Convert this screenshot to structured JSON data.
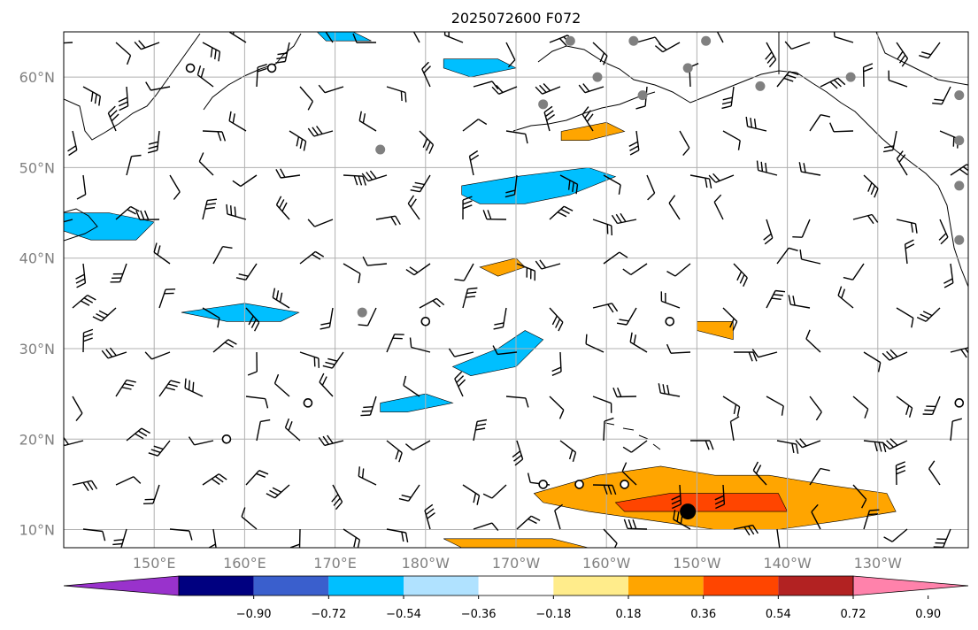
{
  "title": "2025072600 F072",
  "map": {
    "lon_range": [
      140,
      240
    ],
    "lat_range": [
      8,
      65
    ],
    "grid": true,
    "lat_ticks": [
      {
        "value": 10,
        "label": "10°N"
      },
      {
        "value": 20,
        "label": "20°N"
      },
      {
        "value": 30,
        "label": "30°N"
      },
      {
        "value": 40,
        "label": "40°N"
      },
      {
        "value": 50,
        "label": "50°N"
      },
      {
        "value": 60,
        "label": "60°N"
      }
    ],
    "lon_ticks": [
      {
        "value": 150,
        "label": "150°E"
      },
      {
        "value": 160,
        "label": "160°E"
      },
      {
        "value": 170,
        "label": "170°E"
      },
      {
        "value": 180,
        "label": "180°W"
      },
      {
        "value": 190,
        "label": "170°W"
      },
      {
        "value": 200,
        "label": "160°W"
      },
      {
        "value": 210,
        "label": "150°W"
      },
      {
        "value": 220,
        "label": "140°W"
      },
      {
        "value": 230,
        "label": "130°W"
      }
    ]
  },
  "colorbar": {
    "bins": [
      {
        "color": "#9932CC"
      },
      {
        "color": "#000080"
      },
      {
        "color": "#3A5FCD"
      },
      {
        "color": "#00BFFF"
      },
      {
        "color": "#B0E2FF"
      },
      {
        "color": "#FFFFFF"
      },
      {
        "color": "#FFEC8B"
      },
      {
        "color": "#FFA500"
      },
      {
        "color": "#FF4500"
      },
      {
        "color": "#B22222"
      },
      {
        "color": "#FF82AB"
      }
    ],
    "labels": [
      "−0.90",
      "−0.72",
      "−0.54",
      "−0.36",
      "−0.18",
      "0.18",
      "0.36",
      "0.54",
      "0.72",
      "0.90"
    ]
  },
  "regions": [
    {
      "color": "#FFA500",
      "pts": [
        [
          192,
          14
        ],
        [
          199,
          16
        ],
        [
          206,
          17
        ],
        [
          212,
          16
        ],
        [
          218,
          16
        ],
        [
          224,
          15
        ],
        [
          231,
          14
        ],
        [
          232,
          12
        ],
        [
          226,
          11
        ],
        [
          219,
          10
        ],
        [
          212,
          10
        ],
        [
          205,
          11
        ],
        [
          198,
          12
        ],
        [
          193,
          13
        ]
      ]
    },
    {
      "color": "#FF4500",
      "pts": [
        [
          201,
          13
        ],
        [
          207,
          14
        ],
        [
          213,
          14
        ],
        [
          219,
          14
        ],
        [
          220,
          12
        ],
        [
          214,
          12
        ],
        [
          208,
          12
        ],
        [
          202,
          12
        ]
      ]
    },
    {
      "color": "#FFA500",
      "pts": [
        [
          182,
          9
        ],
        [
          188,
          9
        ],
        [
          194,
          9
        ],
        [
          198,
          8
        ],
        [
          184,
          8
        ]
      ]
    },
    {
      "color": "#FFA500",
      "pts": [
        [
          195,
          54
        ],
        [
          200,
          55
        ],
        [
          202,
          54
        ],
        [
          198,
          53
        ],
        [
          195,
          53
        ]
      ]
    },
    {
      "color": "#FFA500",
      "pts": [
        [
          186,
          39
        ],
        [
          190,
          40
        ],
        [
          191,
          39
        ],
        [
          188,
          38
        ]
      ]
    },
    {
      "color": "#FFA500",
      "pts": [
        [
          210,
          33
        ],
        [
          214,
          33
        ],
        [
          214,
          31
        ],
        [
          210,
          32
        ]
      ]
    },
    {
      "color": "#00BFFF",
      "pts": [
        [
          184,
          48
        ],
        [
          190,
          49
        ],
        [
          198,
          50
        ],
        [
          201,
          49
        ],
        [
          196,
          47
        ],
        [
          191,
          46
        ],
        [
          186,
          46
        ],
        [
          184,
          47
        ]
      ]
    },
    {
      "color": "#00BFFF",
      "pts": [
        [
          183,
          28
        ],
        [
          188,
          30
        ],
        [
          191,
          32
        ],
        [
          193,
          31
        ],
        [
          190,
          28
        ],
        [
          185,
          27
        ]
      ]
    },
    {
      "color": "#00BFFF",
      "pts": [
        [
          153,
          34
        ],
        [
          160,
          35
        ],
        [
          166,
          34
        ],
        [
          164,
          33
        ],
        [
          158,
          33
        ],
        [
          153,
          34
        ]
      ]
    },
    {
      "color": "#00BFFF",
      "pts": [
        [
          140,
          45
        ],
        [
          145,
          45
        ],
        [
          150,
          44
        ],
        [
          148,
          42
        ],
        [
          143,
          42
        ],
        [
          140,
          43
        ]
      ]
    },
    {
      "color": "#00BFFF",
      "pts": [
        [
          182,
          62
        ],
        [
          188,
          62
        ],
        [
          190,
          61
        ],
        [
          185,
          60
        ],
        [
          182,
          61
        ]
      ]
    },
    {
      "color": "#00BFFF",
      "pts": [
        [
          175,
          24
        ],
        [
          180,
          25
        ],
        [
          183,
          24
        ],
        [
          178,
          23
        ],
        [
          175,
          23
        ]
      ]
    },
    {
      "color": "#00BFFF",
      "pts": [
        [
          168,
          65
        ],
        [
          172,
          65
        ],
        [
          174,
          64
        ],
        [
          169,
          64
        ]
      ]
    }
  ],
  "stations": [
    {
      "lon": 196,
      "lat": 64,
      "kind": "gray"
    },
    {
      "lon": 203,
      "lat": 64,
      "kind": "gray"
    },
    {
      "lon": 211,
      "lat": 64,
      "kind": "gray"
    },
    {
      "lon": 199,
      "lat": 60,
      "kind": "gray"
    },
    {
      "lon": 204,
      "lat": 58,
      "kind": "gray"
    },
    {
      "lon": 209,
      "lat": 61,
      "kind": "gray"
    },
    {
      "lon": 217,
      "lat": 59,
      "kind": "gray"
    },
    {
      "lon": 227,
      "lat": 60,
      "kind": "gray"
    },
    {
      "lon": 239,
      "lat": 58,
      "kind": "gray"
    },
    {
      "lon": 239,
      "lat": 53,
      "kind": "gray"
    },
    {
      "lon": 239,
      "lat": 48,
      "kind": "gray"
    },
    {
      "lon": 239,
      "lat": 42,
      "kind": "gray"
    },
    {
      "lon": 193,
      "lat": 57,
      "kind": "gray"
    },
    {
      "lon": 175,
      "lat": 52,
      "kind": "gray"
    },
    {
      "lon": 173,
      "lat": 34,
      "kind": "gray"
    },
    {
      "lon": 180,
      "lat": 33,
      "kind": "open"
    },
    {
      "lon": 207,
      "lat": 33,
      "kind": "open"
    },
    {
      "lon": 167,
      "lat": 24,
      "kind": "open"
    },
    {
      "lon": 158,
      "lat": 20,
      "kind": "open"
    },
    {
      "lon": 193,
      "lat": 15,
      "kind": "open"
    },
    {
      "lon": 197,
      "lat": 15,
      "kind": "open"
    },
    {
      "lon": 202,
      "lat": 15,
      "kind": "open"
    },
    {
      "lon": 239,
      "lat": 24,
      "kind": "open"
    },
    {
      "lon": 154,
      "lat": 61,
      "kind": "open"
    },
    {
      "lon": 163,
      "lat": 61,
      "kind": "open"
    },
    {
      "lon": 209,
      "lat": 12,
      "kind": "black"
    }
  ]
}
